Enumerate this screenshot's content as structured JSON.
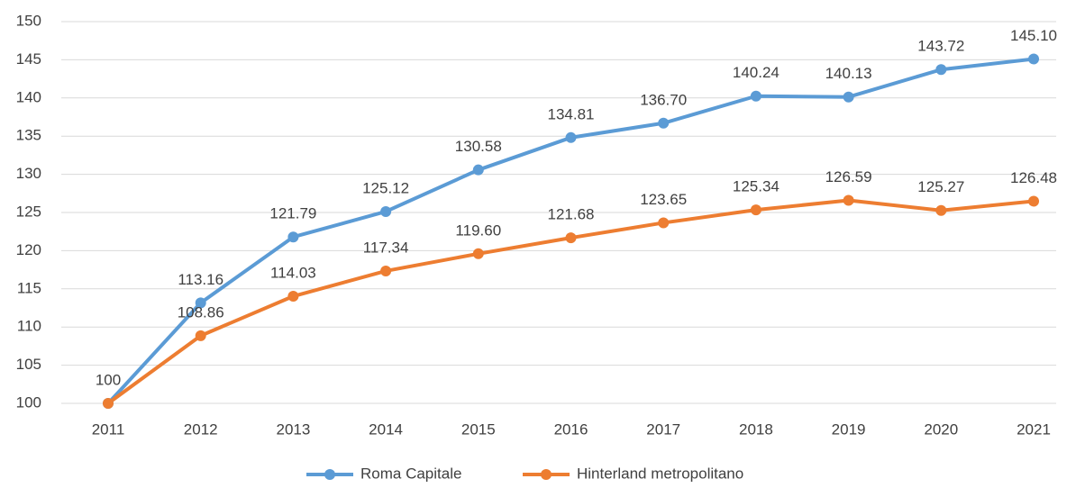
{
  "chart_data": {
    "type": "line",
    "categories": [
      "2011",
      "2012",
      "2013",
      "2014",
      "2015",
      "2016",
      "2017",
      "2018",
      "2019",
      "2020",
      "2021"
    ],
    "series": [
      {
        "name": "Roma Capitale",
        "color": "#5b9bd5",
        "values": [
          100,
          113.16,
          121.79,
          125.12,
          130.58,
          134.81,
          136.7,
          140.24,
          140.13,
          143.72,
          145.1
        ],
        "value_labels": [
          "100",
          "113.16",
          "121.79",
          "125.12",
          "130.58",
          "134.81",
          "136.70",
          "140.24",
          "140.13",
          "143.72",
          "145.10"
        ]
      },
      {
        "name": "Hinterland metropolitano",
        "color": "#ed7d31",
        "values": [
          100,
          108.86,
          114.03,
          117.34,
          119.6,
          121.68,
          123.65,
          125.34,
          126.59,
          125.27,
          126.48
        ],
        "value_labels": [
          null,
          "108.86",
          "114.03",
          "117.34",
          "119.60",
          "121.68",
          "123.65",
          "125.34",
          "126.59",
          "125.27",
          "126.48"
        ]
      }
    ],
    "ylim": [
      100,
      150
    ],
    "yticks": [
      100,
      105,
      110,
      115,
      120,
      125,
      130,
      135,
      140,
      145,
      150
    ],
    "grid": true,
    "legend": "bottom"
  }
}
